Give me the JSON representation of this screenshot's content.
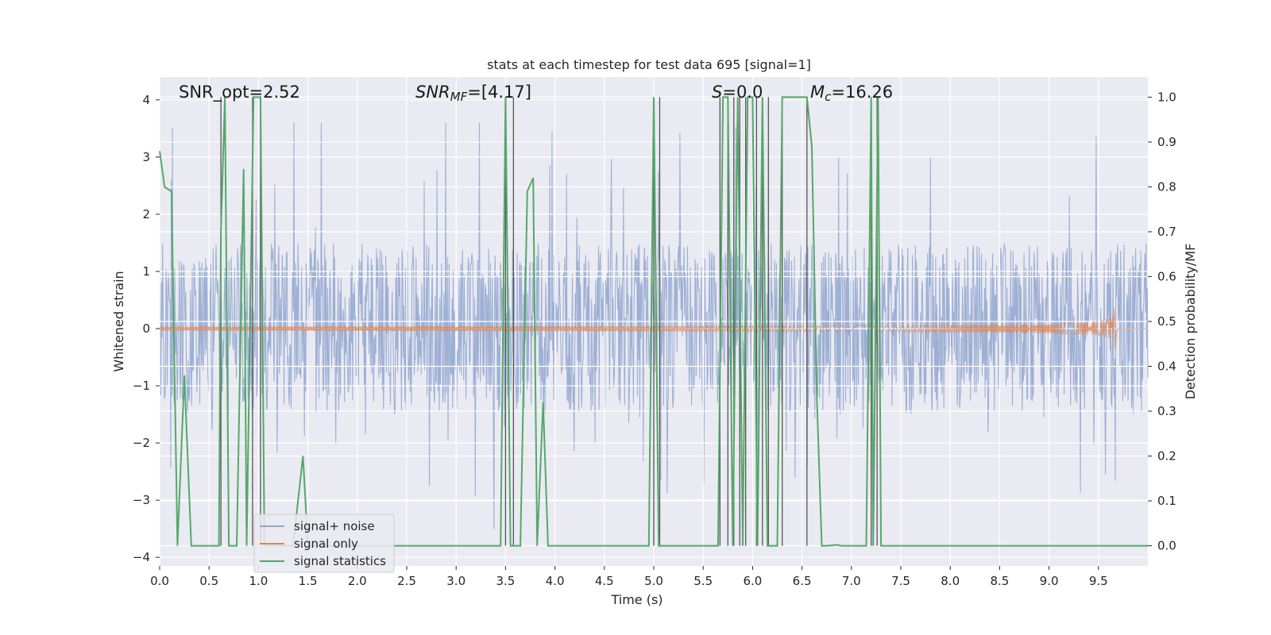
{
  "chart_data": {
    "type": "line",
    "title": "stats at each timestep for test data 695 [signal=1]",
    "xlabel": "Time (s)",
    "ylabel": "Whitened strain",
    "y2label": "Detection probability/MF",
    "xlim": [
      0.0,
      10.0
    ],
    "ylim": [
      -4.15,
      4.4
    ],
    "y2lim": [
      -0.045,
      1.045
    ],
    "x_ticks": [
      "0.0",
      "0.5",
      "1.0",
      "1.5",
      "2.0",
      "2.5",
      "3.0",
      "3.5",
      "4.0",
      "4.5",
      "5.0",
      "5.5",
      "6.0",
      "6.5",
      "7.0",
      "7.5",
      "8.0",
      "8.5",
      "9.0",
      "9.5"
    ],
    "y_ticks": [
      "4",
      "3",
      "2",
      "1",
      "0",
      "−1",
      "−2",
      "−3",
      "−4"
    ],
    "y2_ticks": [
      "1.0",
      "0.9",
      "0.8",
      "0.7",
      "0.6",
      "0.5",
      "0.4",
      "0.3",
      "0.2",
      "0.1",
      "0.0"
    ],
    "grid": true,
    "legend_position": "lower-left",
    "annotations": {
      "snr_opt": "SNR_opt=2.52",
      "snr_mf_prefix": "SNR",
      "snr_mf_sub": "MF",
      "snr_mf_suffix": "=[4.17]",
      "s_italic": "S",
      "s_value": "=0.0",
      "mc_italic": "M",
      "mc_sub": "c",
      "mc_value": "=16.26"
    },
    "series": [
      {
        "name": "signal+ noise",
        "color": "#8fa5cf",
        "note": "noise samples with amplitude envelope ~ +/-1.5, occasional spikes to +/-3"
      },
      {
        "name": "signal only",
        "color": "#dd8452",
        "chirp_peak_time": 9.67,
        "chirp_peak_amplitude": 0.48
      },
      {
        "name": "signal statistics",
        "color": "#55a868",
        "x": [
          0.0,
          0.05,
          0.12,
          0.18,
          0.25,
          0.32,
          0.4,
          0.5,
          0.6,
          0.62,
          0.66,
          0.7,
          0.78,
          0.85,
          0.88,
          0.95,
          0.98,
          1.02,
          1.06,
          1.12,
          1.2,
          1.3,
          1.35,
          1.45,
          1.5,
          1.6,
          3.45,
          3.5,
          3.55,
          3.6,
          3.65,
          3.72,
          3.78,
          3.82,
          3.88,
          3.93,
          4.0,
          4.95,
          5.0,
          5.05,
          5.1,
          5.6,
          5.65,
          5.7,
          5.75,
          5.8,
          5.85,
          5.9,
          5.95,
          6.0,
          6.05,
          6.1,
          6.15,
          6.2,
          6.25,
          6.3,
          6.35,
          6.55,
          6.6,
          6.65,
          6.7,
          6.75,
          6.85,
          6.9,
          7.0,
          7.15,
          7.2,
          7.22,
          7.27,
          7.3,
          7.35,
          7.5,
          10.0
        ],
        "y": [
          0.88,
          0.8,
          0.79,
          0.0,
          0.38,
          0.0,
          0.0,
          0.0,
          0.0,
          0.7,
          1.0,
          0.0,
          0.0,
          0.84,
          0.0,
          1.0,
          1.0,
          1.0,
          0.0,
          0.0,
          0.0,
          0.0,
          0.0,
          0.2,
          0.0,
          0.0,
          0.0,
          1.0,
          0.0,
          0.0,
          0.0,
          0.79,
          0.82,
          0.0,
          0.32,
          0.0,
          0.0,
          0.0,
          1.0,
          0.0,
          0.0,
          0.0,
          0.0,
          1.0,
          1.0,
          0.0,
          1.0,
          0.0,
          1.0,
          1.0,
          0.0,
          1.0,
          0.0,
          0.0,
          0.0,
          1.0,
          1.0,
          1.0,
          0.89,
          0.33,
          0.0,
          0.0,
          0.002,
          0.0,
          0.0,
          0.0,
          1.0,
          0.0,
          1.0,
          0.0,
          0.0,
          0.0,
          0.0
        ]
      }
    ],
    "vertical_markers": [
      0.62,
      0.94,
      1.02,
      3.5,
      3.58,
      5.0,
      5.06,
      5.67,
      5.75,
      5.81,
      5.87,
      5.93,
      6.04,
      6.1,
      6.16,
      6.3,
      6.55,
      7.2,
      7.26
    ]
  }
}
